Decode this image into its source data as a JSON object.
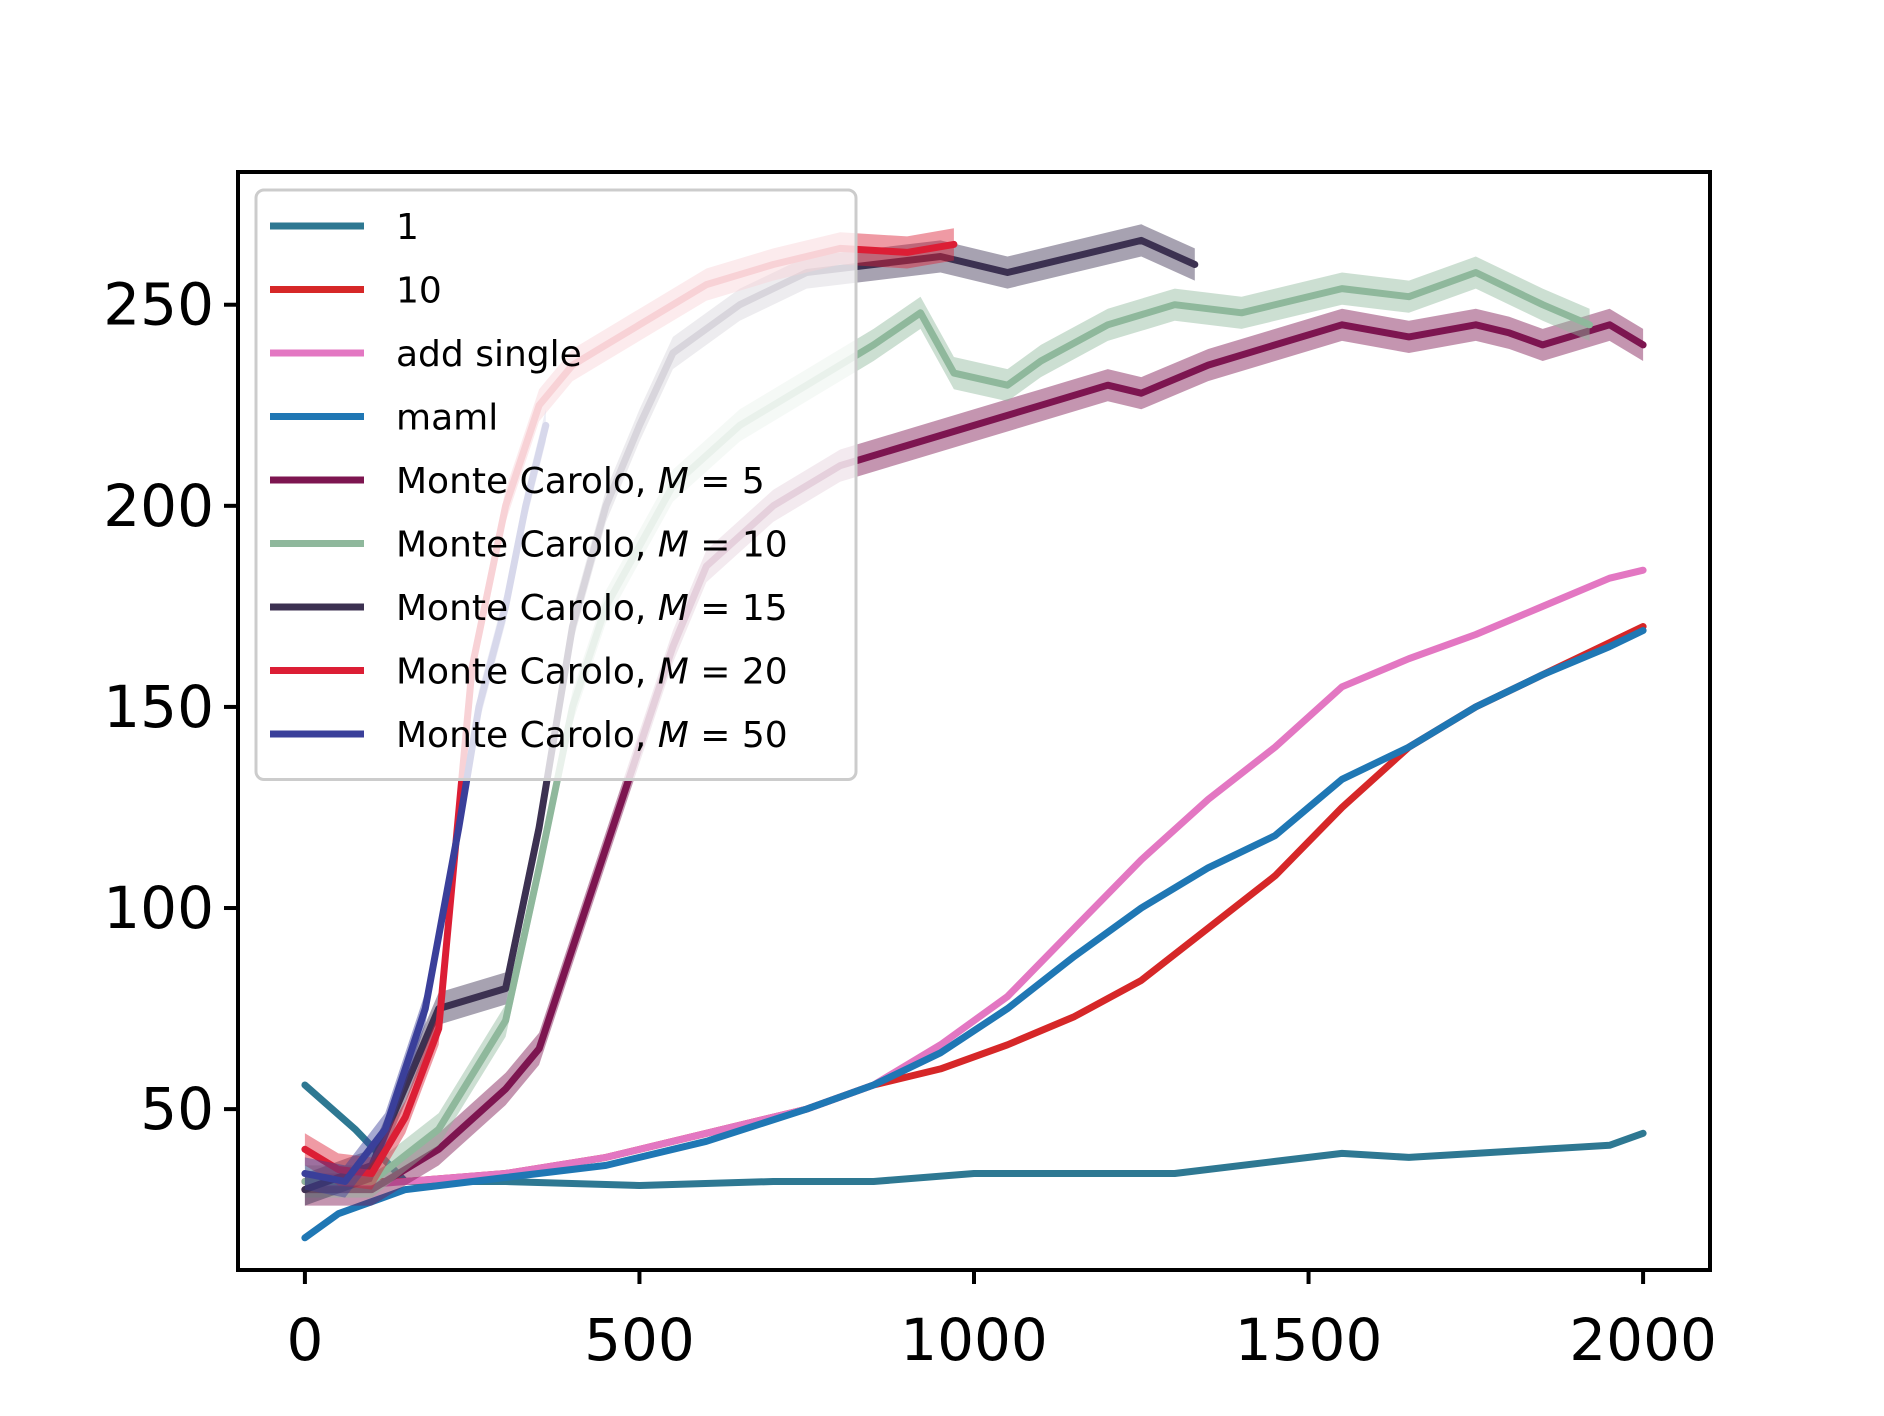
{
  "chart_data": {
    "type": "line",
    "title": "",
    "xlabel": "",
    "ylabel": "",
    "xlim": [
      -100,
      2100
    ],
    "ylim": [
      10,
      283
    ],
    "x_ticks": [
      0,
      500,
      1000,
      1500,
      2000
    ],
    "y_ticks": [
      50,
      100,
      150,
      200,
      250
    ],
    "x_tick_labels": [
      "0",
      "500",
      "1000",
      "1500",
      "2000"
    ],
    "y_tick_labels": [
      "50",
      "100",
      "150",
      "200",
      "250"
    ],
    "grid": false,
    "legend_position": "upper-left",
    "series": [
      {
        "name": "1",
        "color": "#2e7892",
        "points": [
          [
            0,
            56
          ],
          [
            75,
            45
          ],
          [
            150,
            32
          ],
          [
            300,
            32
          ],
          [
            500,
            31
          ],
          [
            700,
            32
          ],
          [
            850,
            32
          ],
          [
            1000,
            34
          ],
          [
            1150,
            34
          ],
          [
            1300,
            34
          ],
          [
            1450,
            37
          ],
          [
            1550,
            39
          ],
          [
            1650,
            38
          ],
          [
            1750,
            39
          ],
          [
            1850,
            40
          ],
          [
            1950,
            41
          ],
          [
            2000,
            44
          ]
        ]
      },
      {
        "name": "10",
        "color": "#d62728",
        "points": [
          [
            0,
            32
          ],
          [
            150,
            32
          ],
          [
            300,
            34
          ],
          [
            450,
            38
          ],
          [
            600,
            44
          ],
          [
            750,
            50
          ],
          [
            850,
            56
          ],
          [
            950,
            60
          ],
          [
            1050,
            66
          ],
          [
            1150,
            73
          ],
          [
            1250,
            82
          ],
          [
            1350,
            95
          ],
          [
            1450,
            108
          ],
          [
            1550,
            125
          ],
          [
            1650,
            140
          ],
          [
            1750,
            150
          ],
          [
            1850,
            158
          ],
          [
            1950,
            166
          ],
          [
            2000,
            170
          ]
        ]
      },
      {
        "name": "add single",
        "color": "#e377c2",
        "points": [
          [
            0,
            30
          ],
          [
            150,
            32
          ],
          [
            300,
            34
          ],
          [
            450,
            38
          ],
          [
            600,
            44
          ],
          [
            750,
            50
          ],
          [
            850,
            56
          ],
          [
            950,
            66
          ],
          [
            1050,
            78
          ],
          [
            1150,
            95
          ],
          [
            1250,
            112
          ],
          [
            1350,
            127
          ],
          [
            1450,
            140
          ],
          [
            1550,
            155
          ],
          [
            1650,
            162
          ],
          [
            1750,
            168
          ],
          [
            1850,
            175
          ],
          [
            1950,
            182
          ],
          [
            2000,
            184
          ]
        ]
      },
      {
        "name": "maml",
        "color": "#1f77b4",
        "points": [
          [
            0,
            18
          ],
          [
            50,
            24
          ],
          [
            150,
            30
          ],
          [
            300,
            33
          ],
          [
            450,
            36
          ],
          [
            600,
            42
          ],
          [
            750,
            50
          ],
          [
            850,
            56
          ],
          [
            950,
            64
          ],
          [
            1050,
            75
          ],
          [
            1150,
            88
          ],
          [
            1250,
            100
          ],
          [
            1350,
            110
          ],
          [
            1450,
            118
          ],
          [
            1550,
            132
          ],
          [
            1650,
            140
          ],
          [
            1750,
            150
          ],
          [
            1850,
            158
          ],
          [
            1950,
            165
          ],
          [
            2000,
            169
          ]
        ]
      },
      {
        "name": "Monte Carolo, $M = 5$",
        "color": "#7d1550",
        "band": 4,
        "points": [
          [
            0,
            30
          ],
          [
            100,
            30
          ],
          [
            200,
            40
          ],
          [
            300,
            55
          ],
          [
            350,
            65
          ],
          [
            400,
            90
          ],
          [
            450,
            115
          ],
          [
            500,
            140
          ],
          [
            550,
            165
          ],
          [
            600,
            185
          ],
          [
            700,
            200
          ],
          [
            800,
            210
          ],
          [
            900,
            215
          ],
          [
            1000,
            220
          ],
          [
            1100,
            225
          ],
          [
            1200,
            230
          ],
          [
            1250,
            228
          ],
          [
            1350,
            235
          ],
          [
            1450,
            240
          ],
          [
            1550,
            245
          ],
          [
            1650,
            242
          ],
          [
            1750,
            245
          ],
          [
            1800,
            243
          ],
          [
            1850,
            240
          ],
          [
            1950,
            245
          ],
          [
            2000,
            240
          ]
        ]
      },
      {
        "name": "Monte Carolo, $M = 10$",
        "color": "#8fb89c",
        "band": 4,
        "points": [
          [
            0,
            32
          ],
          [
            100,
            32
          ],
          [
            200,
            45
          ],
          [
            300,
            72
          ],
          [
            350,
            110
          ],
          [
            400,
            150
          ],
          [
            450,
            175
          ],
          [
            500,
            190
          ],
          [
            550,
            205
          ],
          [
            650,
            220
          ],
          [
            750,
            230
          ],
          [
            850,
            240
          ],
          [
            920,
            248
          ],
          [
            970,
            233
          ],
          [
            1050,
            230
          ],
          [
            1100,
            236
          ],
          [
            1200,
            245
          ],
          [
            1300,
            250
          ],
          [
            1400,
            248
          ],
          [
            1550,
            254
          ],
          [
            1650,
            252
          ],
          [
            1750,
            258
          ],
          [
            1850,
            250
          ],
          [
            1920,
            245
          ]
        ]
      },
      {
        "name": "Monte Carolo, $M = 15$",
        "color": "#3c3151",
        "band": 4,
        "points": [
          [
            0,
            30
          ],
          [
            100,
            36
          ],
          [
            200,
            75
          ],
          [
            300,
            80
          ],
          [
            350,
            120
          ],
          [
            400,
            170
          ],
          [
            450,
            200
          ],
          [
            500,
            220
          ],
          [
            550,
            238
          ],
          [
            650,
            250
          ],
          [
            750,
            258
          ],
          [
            850,
            260
          ],
          [
            950,
            262
          ],
          [
            1050,
            258
          ],
          [
            1150,
            262
          ],
          [
            1250,
            266
          ],
          [
            1330,
            260
          ]
        ]
      },
      {
        "name": "Monte Carolo, $M = 20$",
        "color": "#dc1e35",
        "band": 4,
        "points": [
          [
            0,
            40
          ],
          [
            50,
            35
          ],
          [
            100,
            34
          ],
          [
            150,
            48
          ],
          [
            200,
            70
          ],
          [
            250,
            160
          ],
          [
            300,
            200
          ],
          [
            350,
            225
          ],
          [
            400,
            235
          ],
          [
            450,
            240
          ],
          [
            500,
            245
          ],
          [
            600,
            255
          ],
          [
            700,
            260
          ],
          [
            800,
            264
          ],
          [
            900,
            263
          ],
          [
            970,
            265
          ]
        ]
      },
      {
        "name": "Monte Carolo, $M = 50$",
        "color": "#3a3f9a",
        "band": 4,
        "points": [
          [
            0,
            34
          ],
          [
            60,
            32
          ],
          [
            120,
            45
          ],
          [
            180,
            75
          ],
          [
            230,
            120
          ],
          [
            260,
            150
          ],
          [
            300,
            175
          ],
          [
            330,
            200
          ],
          [
            360,
            220
          ]
        ]
      }
    ],
    "legend": {
      "entries": [
        {
          "text": "1",
          "color": "#2e7892"
        },
        {
          "text": "10",
          "color": "#d62728"
        },
        {
          "text": "add single",
          "color": "#e377c2"
        },
        {
          "text": "maml",
          "color": "#1f77b4"
        },
        {
          "prefix": "Monte Carolo, ",
          "var": "M",
          "value": " = 5",
          "color": "#7d1550"
        },
        {
          "prefix": "Monte Carolo, ",
          "var": "M",
          "value": " = 10",
          "color": "#8fb89c"
        },
        {
          "prefix": "Monte Carolo, ",
          "var": "M",
          "value": " = 15",
          "color": "#3c3151"
        },
        {
          "prefix": "Monte Carolo, ",
          "var": "M",
          "value": " = 20",
          "color": "#dc1e35"
        },
        {
          "prefix": "Monte Carolo, ",
          "var": "M",
          "value": " = 50",
          "color": "#3a3f9a"
        }
      ]
    }
  }
}
